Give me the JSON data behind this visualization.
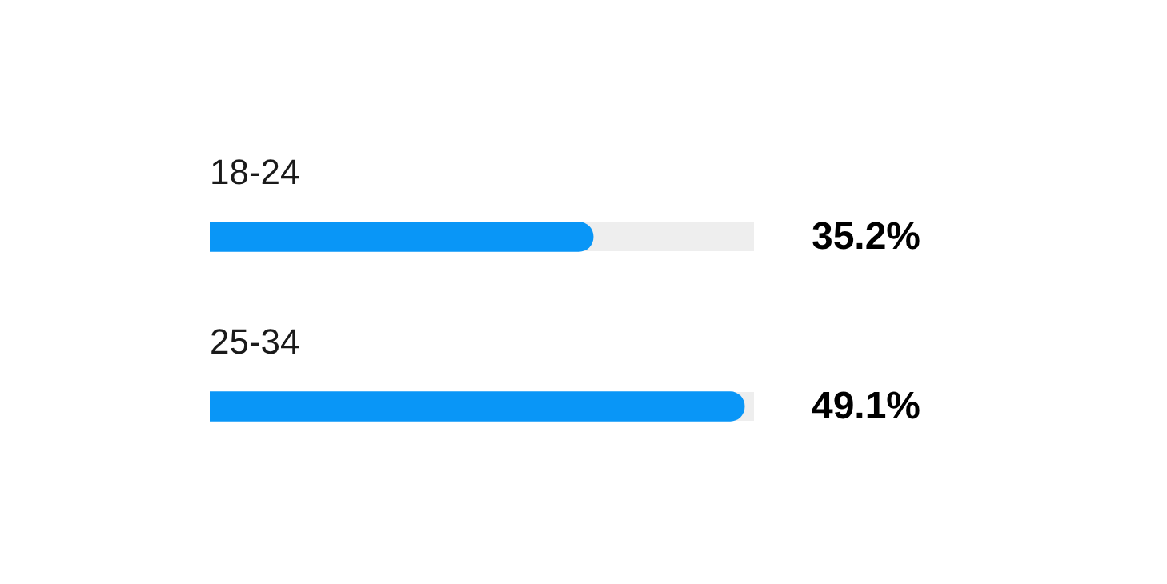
{
  "chart_data": {
    "type": "bar",
    "orientation": "horizontal",
    "categories": [
      "18-24",
      "25-34"
    ],
    "values": [
      35.2,
      49.1
    ],
    "color": "#0996f7",
    "value_labels": [
      "35.2%",
      "49.1%"
    ]
  }
}
